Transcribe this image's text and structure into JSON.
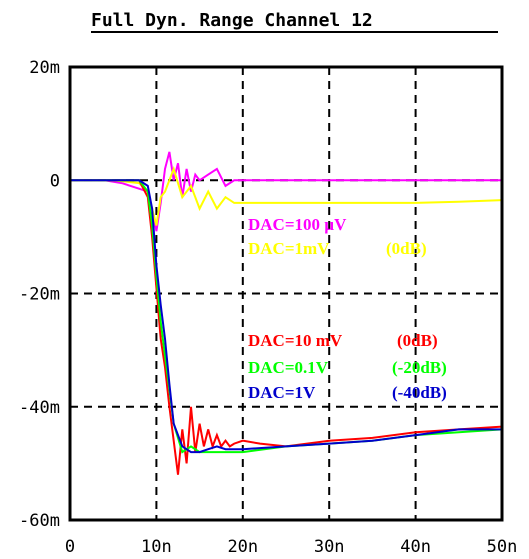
{
  "chart_data": {
    "type": "line",
    "title": "Full Dyn. Range Channel 12",
    "xlabel": "",
    "ylabel": "",
    "xlim": [
      0,
      50
    ],
    "ylim": [
      -60,
      20
    ],
    "x_ticks": [
      "0",
      "10n",
      "20n",
      "30n",
      "40n",
      "50n"
    ],
    "y_ticks": [
      "20m",
      "0",
      "-20m",
      "-40m",
      "-60m"
    ],
    "x_tick_values": [
      0,
      10,
      20,
      30,
      40,
      50
    ],
    "y_tick_values": [
      20,
      0,
      -20,
      -40,
      -60
    ],
    "grid": true,
    "series": [
      {
        "color": "#ff00ff",
        "x": [
          0,
          2,
          4,
          6,
          7,
          8,
          9,
          9.5,
          10,
          10.5,
          11,
          11.5,
          12,
          12.5,
          13,
          13.5,
          14,
          14.5,
          15,
          16,
          17,
          18,
          19,
          20,
          25,
          30,
          35,
          40,
          45,
          50
        ],
        "values": [
          0,
          0,
          0,
          -0.5,
          -1,
          -1.5,
          -2,
          -5,
          -9,
          -4,
          2,
          5,
          0,
          3,
          -3,
          2,
          -2,
          1,
          0,
          1,
          2,
          -1,
          0,
          0,
          0,
          0,
          0,
          0,
          0,
          0
        ]
      },
      {
        "color": "#ffff00",
        "x": [
          0,
          5,
          8,
          9,
          9.5,
          10,
          10.5,
          11,
          12,
          13,
          14,
          15,
          16,
          17,
          18,
          19,
          20,
          22,
          25,
          30,
          35,
          40,
          45,
          50
        ],
        "values": [
          0,
          0,
          -0.5,
          -2,
          -5,
          -8,
          -3,
          -2,
          2,
          -3,
          -1,
          -5,
          -2,
          -5,
          -3,
          -4,
          -4,
          -4,
          -4,
          -4,
          -4,
          -4,
          -3.8,
          -3.5
        ]
      },
      {
        "color": "#ff0000",
        "x": [
          0,
          8,
          9,
          9.5,
          10,
          10.5,
          11,
          11.5,
          12,
          12.5,
          13,
          13.5,
          14,
          14.5,
          15,
          15.5,
          16,
          16.5,
          17,
          17.5,
          18,
          18.5,
          19,
          20,
          22,
          25,
          30,
          35,
          40,
          45,
          50
        ],
        "values": [
          0,
          0,
          -3,
          -10,
          -19,
          -28,
          -33,
          -40,
          -46,
          -52,
          -44,
          -50,
          -40,
          -48,
          -43,
          -47,
          -44,
          -47,
          -45,
          -47,
          -46,
          -47,
          -46.5,
          -46,
          -46.5,
          -47,
          -46,
          -45.5,
          -44.5,
          -44,
          -43.5
        ]
      },
      {
        "color": "#00ff00",
        "x": [
          0,
          8,
          9,
          9.5,
          10,
          10.5,
          11,
          11.5,
          12,
          13,
          14,
          15,
          16,
          17,
          18,
          20,
          25,
          30,
          35,
          40,
          45,
          50
        ],
        "values": [
          0,
          0,
          -2,
          -8,
          -17,
          -25,
          -31,
          -37,
          -43,
          -48,
          -47,
          -48,
          -48,
          -48,
          -48,
          -48,
          -47,
          -46.5,
          -46,
          -45,
          -44.5,
          -44
        ]
      },
      {
        "color": "#0000cc",
        "x": [
          0,
          8,
          9,
          9.5,
          10,
          10.5,
          11,
          11.5,
          12,
          13,
          14,
          15,
          16,
          17,
          18,
          20,
          25,
          30,
          35,
          40,
          45,
          50
        ],
        "values": [
          0,
          0,
          -1,
          -5,
          -15,
          -22,
          -28,
          -36,
          -43,
          -47,
          -48,
          -48,
          -47.5,
          -47,
          -47.5,
          -47.5,
          -47,
          -46.5,
          -46,
          -45,
          -44,
          -44
        ]
      }
    ],
    "annotations": [
      {
        "text": "DAC=100  µV",
        "color": "#ff00ff"
      },
      {
        "text": "DAC=1mV",
        "color": "#ffff00"
      },
      {
        "text": "(0dB)",
        "color": "#ffff00"
      },
      {
        "text": "DAC=10  mV",
        "color": "#ff0000"
      },
      {
        "text": "(0dB)",
        "color": "#ff0000"
      },
      {
        "text": "DAC=0.1V",
        "color": "#00ff00"
      },
      {
        "text": "(-20dB)",
        "color": "#00ff00"
      },
      {
        "text": "DAC=1V",
        "color": "#0000cc"
      },
      {
        "text": "(-40dB)",
        "color": "#0000cc"
      }
    ]
  }
}
